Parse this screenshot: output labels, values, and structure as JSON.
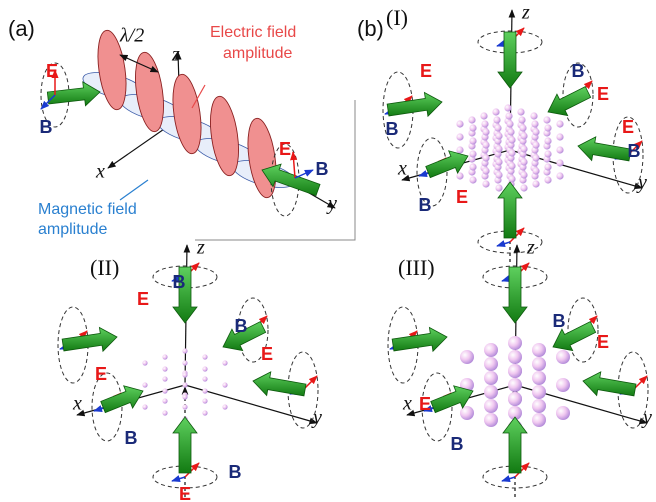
{
  "panel_a": {
    "label": "(a)",
    "wavelength": "λ/2",
    "axes": {
      "x": "x",
      "y": "y",
      "z": "z"
    },
    "electric_label": [
      "Electric field",
      "amplitude"
    ],
    "magnetic_label": [
      "Magnetic field",
      "amplitude"
    ],
    "field_labels": [
      "E",
      "B",
      "E",
      "B"
    ]
  },
  "panel_b": {
    "label": "(b)",
    "subpanels": [
      {
        "label": "(I)",
        "axes": {
          "x": "x",
          "y": "y",
          "z": "z"
        },
        "field_labels": [
          "E",
          "B",
          "B",
          "E",
          "E",
          "B",
          "B",
          "E"
        ]
      },
      {
        "label": "(II)",
        "axes": {
          "x": "x",
          "y": "y",
          "z": "z"
        },
        "field_labels": [
          "B",
          "E",
          "B",
          "E",
          "E",
          "B",
          "B",
          "E"
        ]
      },
      {
        "label": "(III)",
        "axes": {
          "x": "x",
          "y": "y",
          "z": "z"
        },
        "field_labels": [
          "B",
          "E",
          "E",
          "B"
        ]
      }
    ]
  }
}
